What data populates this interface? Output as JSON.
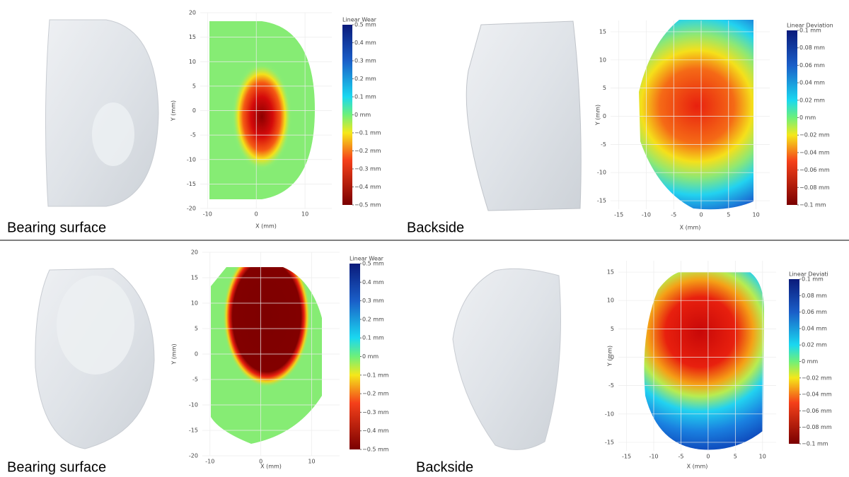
{
  "panels": [
    {
      "caption": "Bearing surface",
      "plot": {
        "x_label": "X (mm)",
        "y_label": "Y (mm)",
        "xlim": [
          -11.5,
          15.5
        ],
        "ylim": [
          -20,
          20
        ],
        "xticks": [
          -10,
          0,
          10
        ],
        "yticks": [
          20,
          15,
          10,
          5,
          0,
          -5,
          -10,
          -15,
          -20
        ],
        "colorbar": {
          "title": "Linear Wear",
          "ticks": [
            {
              "value": 0.5,
              "label": "0.5 mm"
            },
            {
              "value": 0.4,
              "label": "0.4 mm"
            },
            {
              "value": 0.3,
              "label": "0.3 mm"
            },
            {
              "value": 0.2,
              "label": "0.2 mm"
            },
            {
              "value": 0.1,
              "label": "0.1 mm"
            },
            {
              "value": 0,
              "label": "0 mm"
            },
            {
              "value": -0.1,
              "label": "−0.1 mm"
            },
            {
              "value": -0.2,
              "label": "−0.2 mm"
            },
            {
              "value": -0.3,
              "label": "−0.3 mm"
            },
            {
              "value": -0.4,
              "label": "−0.4 mm"
            },
            {
              "value": -0.5,
              "label": "−0.5 mm"
            }
          ]
        }
      }
    },
    {
      "caption": "Backside",
      "plot": {
        "x_label": "X (mm)",
        "y_label": "Y (mm)",
        "xlim": [
          -16.5,
          12.5
        ],
        "ylim": [
          -16.5,
          17
        ],
        "xticks": [
          -15,
          -10,
          -5,
          0,
          5,
          10
        ],
        "yticks": [
          15,
          10,
          5,
          0,
          -5,
          -10,
          -15
        ],
        "colorbar": {
          "title": "Linear Deviation",
          "ticks": [
            {
              "value": 0.1,
              "label": "0.1 mm"
            },
            {
              "value": 0.08,
              "label": "0.08 mm"
            },
            {
              "value": 0.06,
              "label": "0.06 mm"
            },
            {
              "value": 0.04,
              "label": "0.04 mm"
            },
            {
              "value": 0.02,
              "label": "0.02 mm"
            },
            {
              "value": 0,
              "label": "0 mm"
            },
            {
              "value": -0.02,
              "label": "−0.02 mm"
            },
            {
              "value": -0.04,
              "label": "−0.04 mm"
            },
            {
              "value": -0.06,
              "label": "−0.06 mm"
            },
            {
              "value": -0.08,
              "label": "−0.08 mm"
            },
            {
              "value": -0.1,
              "label": "−0.1 mm"
            }
          ]
        }
      }
    },
    {
      "caption": "Bearing surface",
      "plot": {
        "x_label": "X (mm)",
        "y_label": "Y (mm)",
        "xlim": [
          -11.5,
          15.5
        ],
        "ylim": [
          -20,
          20
        ],
        "xticks": [
          -10,
          0,
          10
        ],
        "yticks": [
          20,
          15,
          10,
          5,
          0,
          -5,
          -10,
          -15,
          -20
        ],
        "colorbar": {
          "title": "Linear Wear",
          "ticks": [
            {
              "value": 0.5,
              "label": "0.5 mm"
            },
            {
              "value": 0.4,
              "label": "0.4 mm"
            },
            {
              "value": 0.3,
              "label": "0.3 mm"
            },
            {
              "value": 0.2,
              "label": "0.2 mm"
            },
            {
              "value": 0.1,
              "label": "0.1 mm"
            },
            {
              "value": 0,
              "label": "0 mm"
            },
            {
              "value": -0.1,
              "label": "−0.1 mm"
            },
            {
              "value": -0.2,
              "label": "−0.2 mm"
            },
            {
              "value": -0.3,
              "label": "−0.3 mm"
            },
            {
              "value": -0.4,
              "label": "−0.4 mm"
            },
            {
              "value": -0.5,
              "label": "−0.5 mm"
            }
          ]
        }
      }
    },
    {
      "caption": "Backside",
      "plot": {
        "x_label": "X (mm)",
        "y_label": "Y (mm)",
        "xlim": [
          -16.5,
          12.5
        ],
        "ylim": [
          -16.5,
          17
        ],
        "xticks": [
          -15,
          -10,
          -5,
          0,
          5,
          10
        ],
        "yticks": [
          15,
          10,
          5,
          0,
          -5,
          -10,
          -15
        ],
        "colorbar": {
          "title": "Linear Deviati",
          "ticks": [
            {
              "value": 0.1,
              "label": "0.1 mm"
            },
            {
              "value": 0.08,
              "label": "0.08 mm"
            },
            {
              "value": 0.06,
              "label": "0.06 mm"
            },
            {
              "value": 0.04,
              "label": "0.04 mm"
            },
            {
              "value": 0.02,
              "label": "0.02 mm"
            },
            {
              "value": 0,
              "label": "0 mm"
            },
            {
              "value": -0.02,
              "label": "−0.02 mm"
            },
            {
              "value": -0.04,
              "label": "−0.04 mm"
            },
            {
              "value": -0.06,
              "label": "−0.06 mm"
            },
            {
              "value": -0.08,
              "label": "−0.08 mm"
            },
            {
              "value": -0.1,
              "label": "−0.1 mm"
            }
          ]
        }
      }
    }
  ]
}
